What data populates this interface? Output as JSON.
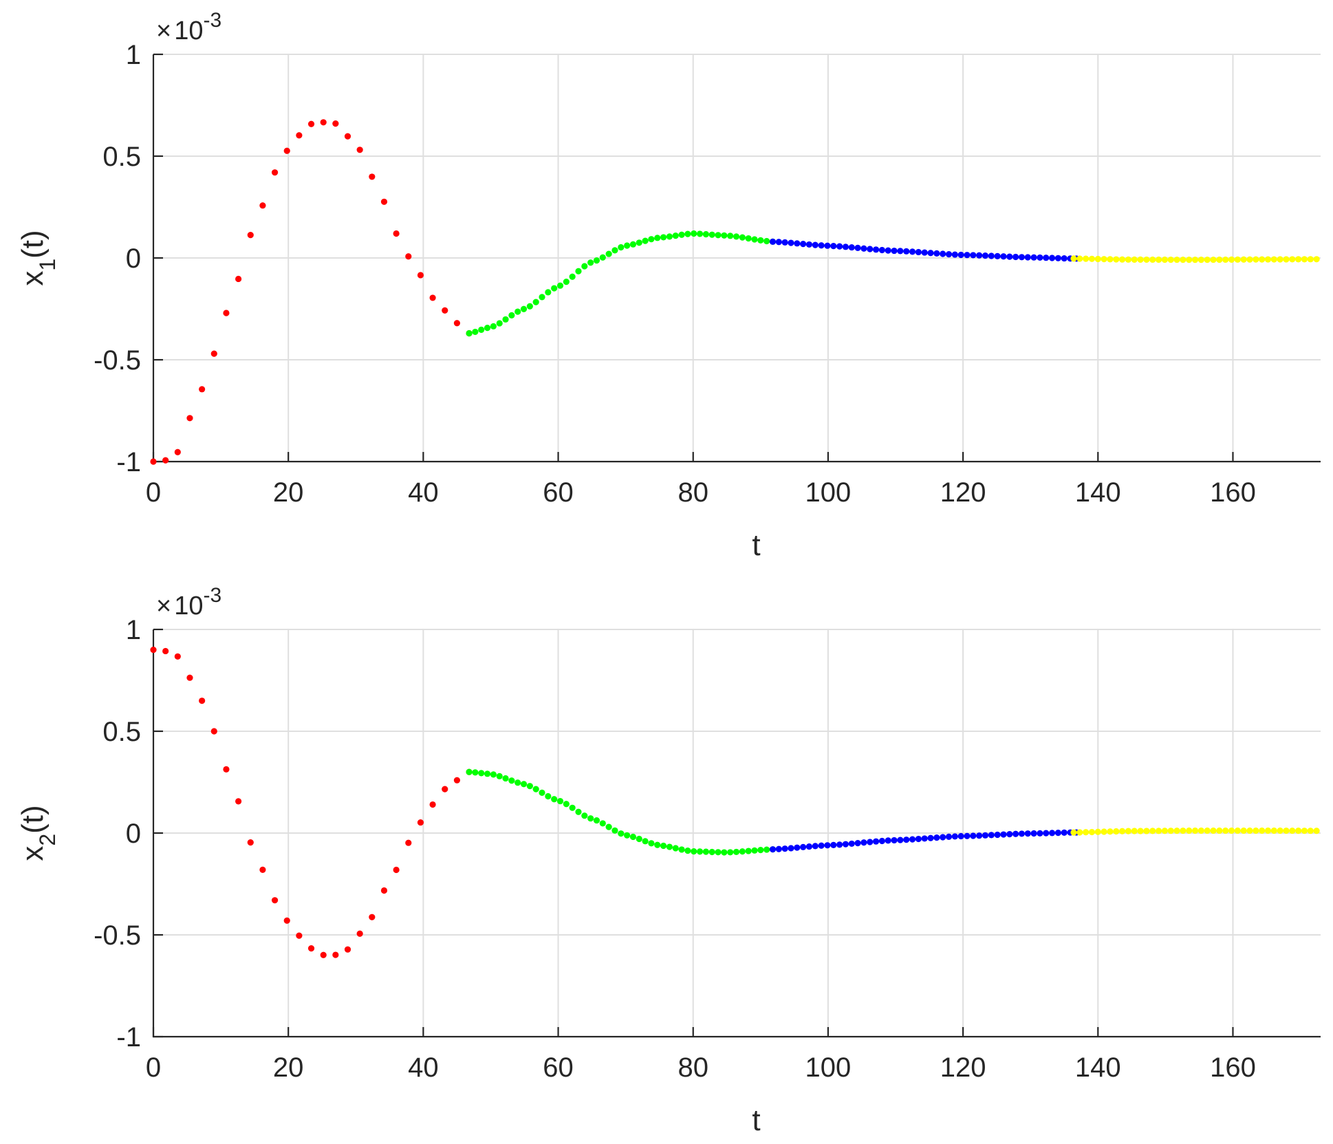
{
  "chart_data": [
    {
      "type": "scatter",
      "xlabel": "t",
      "ylabel_base": "x",
      "ylabel_sub": "1",
      "ylabel_tail": "(t)",
      "exponent_label": {
        "times": "×",
        "base": "10",
        "exp": "-3"
      },
      "xlim": [
        0,
        173
      ],
      "ylim": [
        -1,
        1
      ],
      "xticks": [
        0,
        20,
        40,
        60,
        80,
        100,
        120,
        140,
        160
      ],
      "yticks": [
        1,
        0.5,
        0,
        -0.5,
        -1
      ],
      "ytick_labels": [
        "1",
        "0.5",
        "0",
        "-0.5",
        "-1"
      ],
      "grid": true,
      "series": [
        {
          "color": "#ff0000",
          "t_range": [
            0,
            46.8
          ],
          "step": 1.8
        },
        {
          "color": "#00ff00",
          "t_range": [
            46.8,
            91.8
          ],
          "step": 0.9
        },
        {
          "color": "#0000ff",
          "t_range": [
            91.8,
            136.4
          ],
          "step": 0.9
        },
        {
          "color": "#ffff00",
          "t_range": [
            136.4,
            173
          ],
          "step": 0.9
        }
      ],
      "curve_points": [
        [
          0,
          -1.0
        ],
        [
          3,
          -0.99
        ],
        [
          6,
          -0.75
        ],
        [
          9,
          -0.47
        ],
        [
          12,
          -0.15
        ],
        [
          15,
          0.16
        ],
        [
          18,
          0.42
        ],
        [
          21,
          0.59
        ],
        [
          24,
          0.67
        ],
        [
          27,
          0.66
        ],
        [
          30,
          0.56
        ],
        [
          33,
          0.37
        ],
        [
          36,
          0.12
        ],
        [
          39,
          -0.06
        ],
        [
          42,
          -0.22
        ],
        [
          45,
          -0.32
        ],
        [
          46.8,
          -0.37
        ],
        [
          50,
          -0.34
        ],
        [
          55,
          -0.25
        ],
        [
          60,
          -0.14
        ],
        [
          65,
          -0.02
        ],
        [
          70,
          0.06
        ],
        [
          75,
          0.1
        ],
        [
          80,
          0.12
        ],
        [
          85,
          0.11
        ],
        [
          91.8,
          0.08
        ],
        [
          100,
          0.06
        ],
        [
          110,
          0.035
        ],
        [
          120,
          0.015
        ],
        [
          130,
          0.003
        ],
        [
          136.4,
          -0.003
        ],
        [
          145,
          -0.008
        ],
        [
          155,
          -0.009
        ],
        [
          165,
          -0.007
        ],
        [
          173,
          -0.006
        ]
      ]
    },
    {
      "type": "scatter",
      "xlabel": "t",
      "ylabel_base": "x",
      "ylabel_sub": "2",
      "ylabel_tail": "(t)",
      "exponent_label": {
        "times": "×",
        "base": "10",
        "exp": "-3"
      },
      "xlim": [
        0,
        173
      ],
      "ylim": [
        -1,
        1
      ],
      "xticks": [
        0,
        20,
        40,
        60,
        80,
        100,
        120,
        140,
        160
      ],
      "yticks": [
        1,
        0.5,
        0,
        -0.5,
        -1
      ],
      "ytick_labels": [
        "1",
        "0.5",
        "0",
        "-0.5",
        "-1"
      ],
      "grid": true,
      "series": [
        {
          "color": "#ff0000",
          "t_range": [
            0,
            46.8
          ],
          "step": 1.8
        },
        {
          "color": "#00ff00",
          "t_range": [
            46.8,
            91.8
          ],
          "step": 0.9
        },
        {
          "color": "#0000ff",
          "t_range": [
            91.8,
            136.4
          ],
          "step": 0.9
        },
        {
          "color": "#ffff00",
          "t_range": [
            136.4,
            173
          ],
          "step": 0.9
        }
      ],
      "curve_points": [
        [
          0,
          0.9
        ],
        [
          3,
          0.89
        ],
        [
          6,
          0.74
        ],
        [
          9,
          0.5
        ],
        [
          12,
          0.2
        ],
        [
          15,
          -0.09
        ],
        [
          18,
          -0.33
        ],
        [
          21,
          -0.49
        ],
        [
          24,
          -0.58
        ],
        [
          26,
          -0.61
        ],
        [
          29,
          -0.57
        ],
        [
          32,
          -0.43
        ],
        [
          35,
          -0.24
        ],
        [
          38,
          -0.04
        ],
        [
          41,
          0.13
        ],
        [
          44,
          0.24
        ],
        [
          46.8,
          0.3
        ],
        [
          50,
          0.29
        ],
        [
          55,
          0.24
        ],
        [
          60,
          0.16
        ],
        [
          65,
          0.07
        ],
        [
          70,
          -0.01
        ],
        [
          75,
          -0.06
        ],
        [
          80,
          -0.09
        ],
        [
          85,
          -0.095
        ],
        [
          91.8,
          -0.08
        ],
        [
          100,
          -0.06
        ],
        [
          110,
          -0.035
        ],
        [
          120,
          -0.015
        ],
        [
          130,
          -0.002
        ],
        [
          136.4,
          0.003
        ],
        [
          145,
          0.01
        ],
        [
          155,
          0.012
        ],
        [
          165,
          0.012
        ],
        [
          173,
          0.011
        ]
      ]
    }
  ]
}
